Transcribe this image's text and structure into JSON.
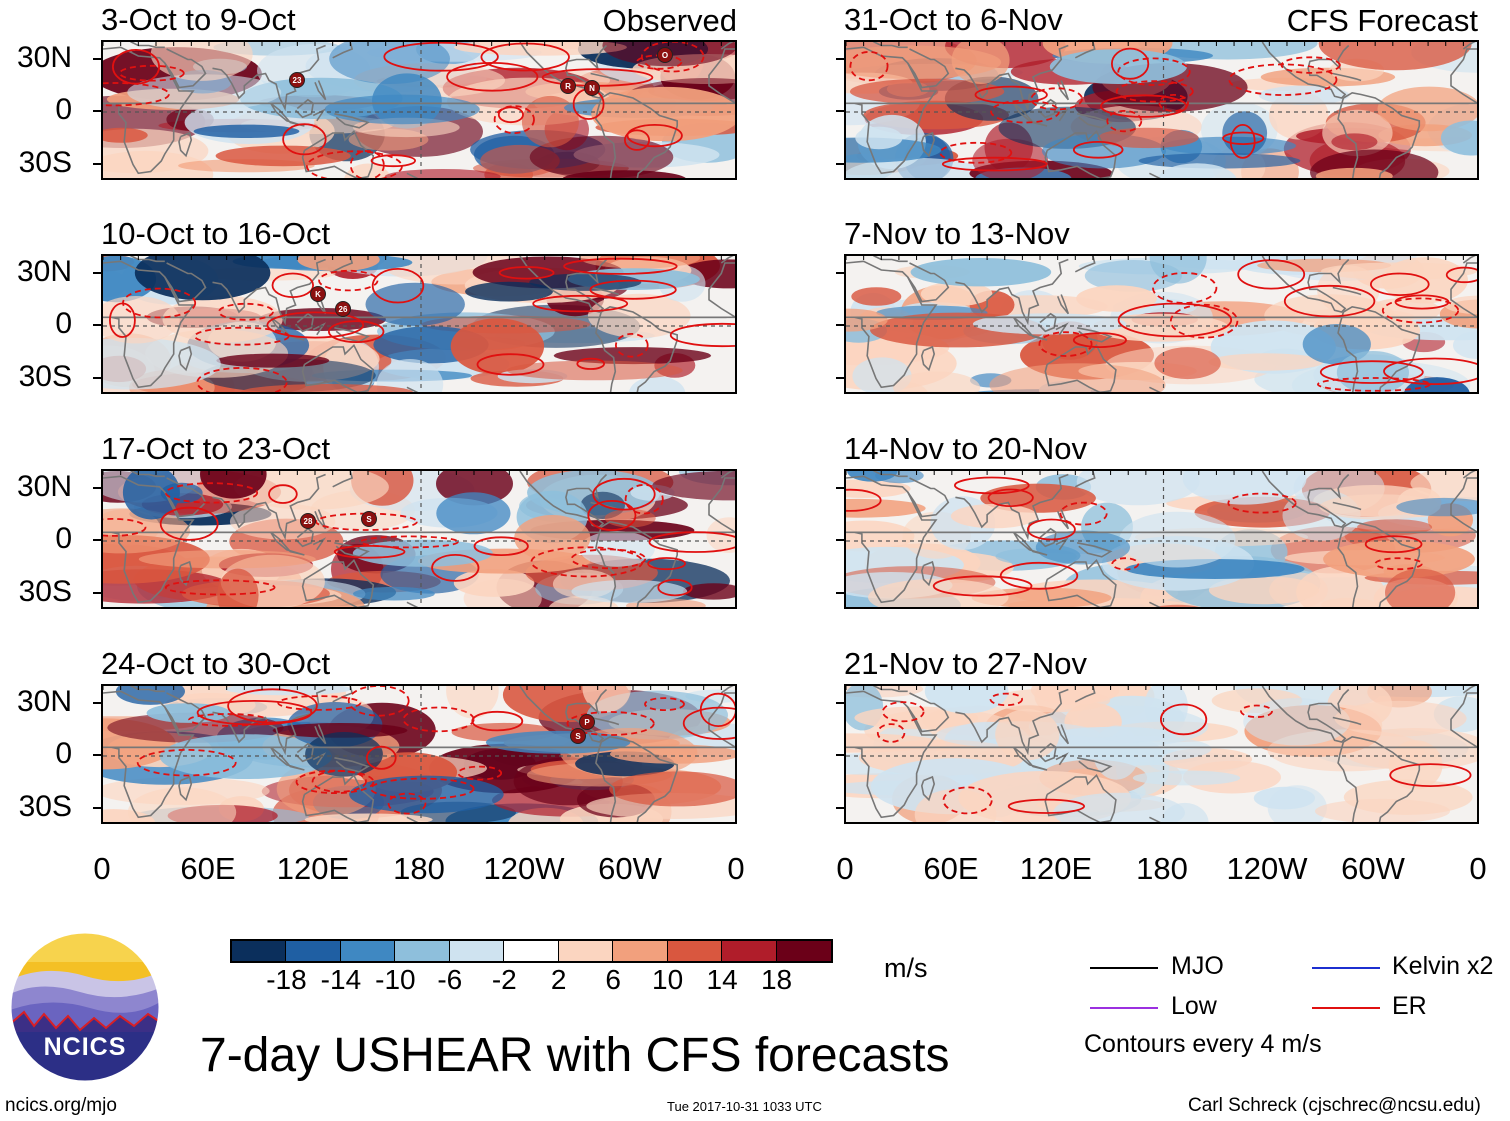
{
  "header": {
    "left_title": "Observed",
    "right_title": "CFS Forecast"
  },
  "observed_panels": [
    {
      "period": "3-Oct to 9-Oct"
    },
    {
      "period": "10-Oct to 16-Oct"
    },
    {
      "period": "17-Oct to 23-Oct"
    },
    {
      "period": "24-Oct to 30-Oct"
    }
  ],
  "forecast_panels": [
    {
      "period": "31-Oct to 6-Nov"
    },
    {
      "period": "7-Nov to 13-Nov"
    },
    {
      "period": "14-Nov to 20-Nov"
    },
    {
      "period": "21-Nov to 27-Nov"
    }
  ],
  "lat_labels": [
    "30N",
    "0",
    "30S"
  ],
  "lon_labels": [
    "0",
    "60E",
    "120E",
    "180",
    "120W",
    "60W",
    "0"
  ],
  "colorbar": {
    "unit": "m/s",
    "labels": [
      "-18",
      "-14",
      "-10",
      "-6",
      "-2",
      "2",
      "6",
      "10",
      "14",
      "18"
    ],
    "colors": [
      "#0b2f5c",
      "#1f5fa3",
      "#3f88c2",
      "#8ebfdc",
      "#cfe3f0",
      "#ffffff",
      "#fbd5c0",
      "#f2a07d",
      "#d9573f",
      "#b01d2a",
      "#6b0018"
    ]
  },
  "legend": {
    "mjo": "MJO",
    "low": "Low",
    "kelvin": "Kelvin x2",
    "er": "ER",
    "contours": "Contours every 4 m/s",
    "colors": {
      "mjo": "#000000",
      "low": "#9b30e0",
      "kelvin": "#1c2fd0",
      "er": "#e01010"
    }
  },
  "storm_markers": {
    "p0": [
      "23",
      "R",
      "N",
      "O"
    ],
    "p1": [
      "K",
      "26"
    ],
    "p2": [
      "28",
      "S"
    ],
    "p3": [
      "P",
      "S"
    ]
  },
  "main_title": "7-day USHEAR with CFS forecasts",
  "logo_text": "NCICS",
  "footer": {
    "url": "ncics.org/mjo",
    "timestamp": "Tue 2017-10-31 1033 UTC",
    "author": "Carl Schreck (cjschrec@ncsu.edu)"
  }
}
